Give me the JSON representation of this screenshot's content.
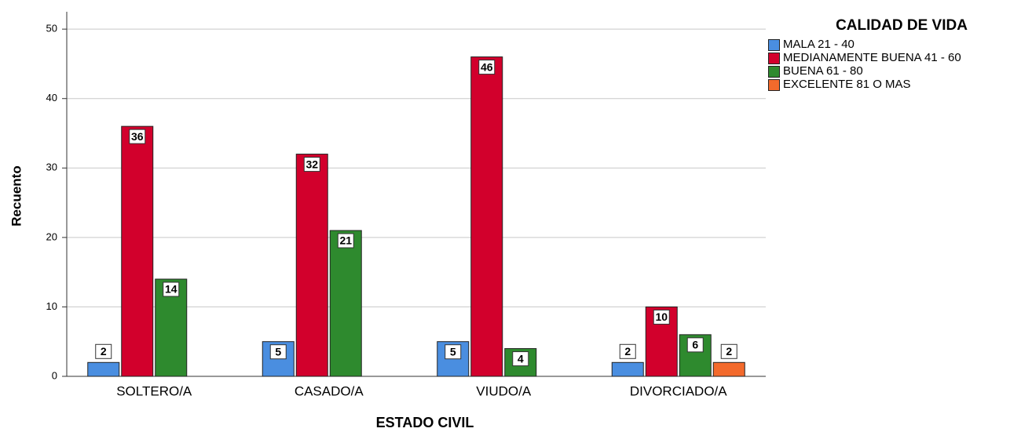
{
  "chart_data": {
    "type": "bar",
    "xlabel": "ESTADO CIVIL",
    "ylabel": "Recuento",
    "legend_title": "CALIDAD DE VIDA",
    "categories": [
      "SOLTERO/A",
      "CASADO/A",
      "VIUDO/A",
      "DIVORCIADO/A"
    ],
    "series": [
      {
        "name": "MALA 21 - 40",
        "color": "#4a8ee0",
        "values": [
          2,
          5,
          5,
          2
        ]
      },
      {
        "name": "MEDIANAMENTE BUENA 41 - 60",
        "color": "#d2002c",
        "values": [
          36,
          32,
          46,
          10
        ]
      },
      {
        "name": "BUENA 61 - 80",
        "color": "#2e8a2e",
        "values": [
          14,
          21,
          4,
          6
        ]
      },
      {
        "name": "EXCELENTE 81 O MAS",
        "color": "#f36a2c",
        "values": [
          null,
          null,
          null,
          2
        ]
      }
    ],
    "ylim": [
      0,
      52.5
    ],
    "yticks": [
      0,
      10,
      20,
      30,
      40,
      50
    ],
    "grid": true,
    "legend": "right"
  }
}
